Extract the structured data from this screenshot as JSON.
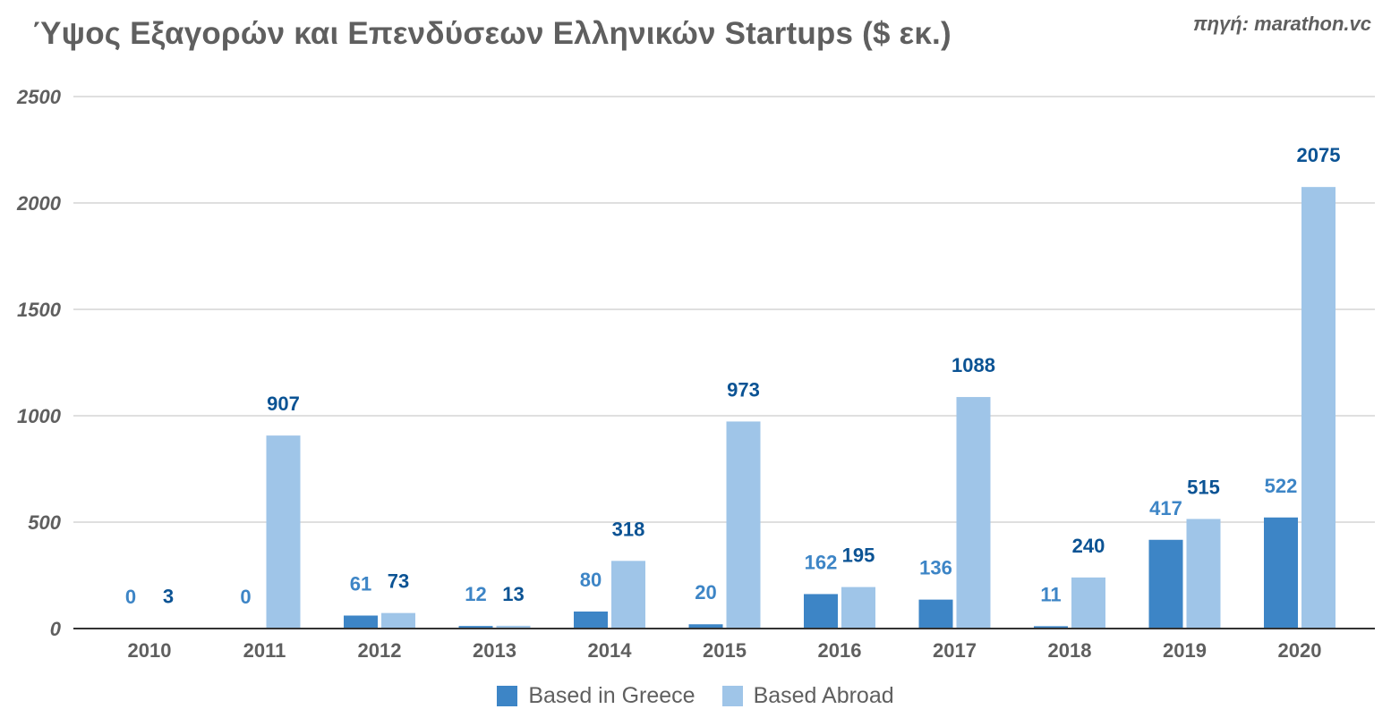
{
  "chart_data": {
    "type": "bar",
    "title": "Ύψος Εξαγορών και Επενδύσεων Ελληνικών Startups ($ εκ.)",
    "source": "πηγή: marathon.vc",
    "categories": [
      "2010",
      "2011",
      "2012",
      "2013",
      "2014",
      "2015",
      "2016",
      "2017",
      "2018",
      "2019",
      "2020"
    ],
    "series": [
      {
        "name": "Based in Greece",
        "color": "#3d85c6",
        "label_color": "#3d85c6",
        "values": [
          0,
          0,
          61,
          12,
          80,
          20,
          162,
          136,
          11,
          417,
          522
        ]
      },
      {
        "name": "Based Abroad",
        "color": "#9fc5e8",
        "label_color": "#0b5394",
        "values": [
          3,
          907,
          73,
          13,
          318,
          973,
          195,
          1088,
          240,
          515,
          2075
        ]
      }
    ],
    "ylim": [
      0,
      2500
    ],
    "yticks": [
      0,
      500,
      1000,
      1500,
      2000,
      2500
    ],
    "xlabel": "",
    "ylabel": "",
    "grid": true,
    "legend_position": "bottom"
  }
}
